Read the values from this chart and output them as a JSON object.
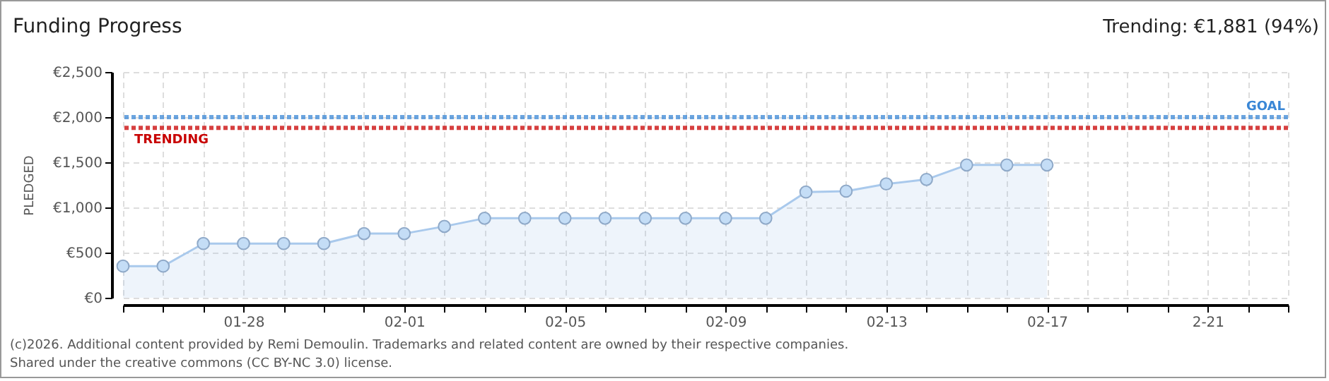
{
  "chart_data": {
    "type": "area",
    "title": "Funding Progress",
    "ylabel": "PLEDGED",
    "x": [
      "--01-25",
      "--01-26",
      "--01-27",
      "--01-28",
      "--01-29",
      "--01-30",
      "--01-31",
      "--02-01",
      "--02-02",
      "--02-03",
      "--02-04",
      "--02-05",
      "--02-06",
      "--02-07",
      "--02-08",
      "--02-09",
      "--02-10",
      "--02-11",
      "--02-12",
      "--02-13",
      "--02-14",
      "--02-15",
      "--02-16",
      "--02-17"
    ],
    "series": [
      {
        "color": "#a9c9ec",
        "values": [
          350,
          350,
          600,
          600,
          600,
          600,
          710,
          710,
          790,
          880,
          880,
          880,
          880,
          880,
          880,
          880,
          880,
          1170,
          1180,
          1260,
          1310,
          1470,
          1470,
          1470
        ]
      }
    ],
    "xlim": [
      "--01-25",
      "--02-23"
    ],
    "xticks": [
      {
        "value": "--01-25",
        "label": null
      },
      {
        "value": "--01-26",
        "label": null
      },
      {
        "value": "--01-27",
        "label": null
      },
      {
        "value": "--01-28",
        "label": "01-28"
      },
      {
        "value": "--01-29",
        "label": null
      },
      {
        "value": "--01-30",
        "label": null
      },
      {
        "value": "--01-31",
        "label": null
      },
      {
        "value": "--02-01",
        "label": "02-01"
      },
      {
        "value": "--02-02",
        "label": null
      },
      {
        "value": "--02-03",
        "label": null
      },
      {
        "value": "--02-04",
        "label": null
      },
      {
        "value": "--02-05",
        "label": "02-05"
      },
      {
        "value": "--02-06",
        "label": null
      },
      {
        "value": "--02-07",
        "label": null
      },
      {
        "value": "--02-08",
        "label": null
      },
      {
        "value": "--02-09",
        "label": "02-09"
      },
      {
        "value": "--02-10",
        "label": null
      },
      {
        "value": "--02-11",
        "label": null
      },
      {
        "value": "--02-12",
        "label": null
      },
      {
        "value": "--02-13",
        "label": "02-13"
      },
      {
        "value": "--02-14",
        "label": null
      },
      {
        "value": "--02-15",
        "label": null
      },
      {
        "value": "--02-16",
        "label": null
      },
      {
        "value": "--02-17",
        "label": "02-17"
      },
      {
        "value": "--02-18",
        "label": null
      },
      {
        "value": "--02-19",
        "label": null
      },
      {
        "value": "--02-20",
        "label": null
      },
      {
        "value": "--02-21",
        "label": "2-21"
      },
      {
        "value": "--02-22",
        "label": null
      },
      {
        "value": "--02-23",
        "label": null
      }
    ],
    "ylim": [
      0,
      2500
    ],
    "yticks": [
      {
        "value": 0,
        "label": "€0"
      },
      {
        "value": 500,
        "label": "€500"
      },
      {
        "value": 1000,
        "label": "€1,000"
      },
      {
        "value": 1500,
        "label": "€1,500"
      },
      {
        "value": 2000,
        "label": "€2,000"
      },
      {
        "value": 2500,
        "label": "€2,500"
      }
    ],
    "grid": true,
    "marker": "circle",
    "ref_lines": [
      {
        "axis": "y",
        "value": 2000,
        "label": "GOAL",
        "color": "#3a87d6",
        "line_style": "dotted"
      },
      {
        "axis": "y",
        "value": 1881,
        "label": "TRENDING",
        "color": "#c80000",
        "line_style": "dotted"
      }
    ],
    "annotations": [
      "Trending: €1,881 (94%)",
      "(c)2026. Additional content provided by Remi Demoulin. Trademarks and related content are owned by their respective companies.",
      "Shared under the creative commons (CC BY-NC 3.0) license."
    ]
  }
}
